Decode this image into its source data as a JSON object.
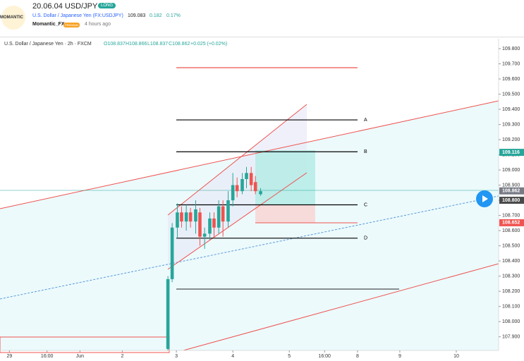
{
  "header": {
    "logo": "MOMANTIC",
    "title": "20.06.04 USD/JPY",
    "badge": "LONG",
    "symbol": "U.S. Dollar / Japanese Yen (FX:USDJPY)",
    "price": "109.083",
    "change": "0.182",
    "change_pct": "0.17%",
    "author": "Momantic_FX",
    "author_badge": "PREMIUM",
    "time": "4 hours ago"
  },
  "legend": {
    "name": "U.S. Dollar / Japanese Yen · 2h · FXCM",
    "open": "O108.837",
    "high": "H108.866",
    "low": "L108.837",
    "close": "C108.862",
    "change": "+0.025 (+0.02%)"
  },
  "chart_data": {
    "type": "candlestick",
    "x": [
      33.7,
      34.6,
      35.7,
      36.6,
      37.6,
      38.5,
      39.6,
      40.5,
      41.5,
      42.6,
      43.5,
      44.5,
      45.4,
      46.5,
      47.5,
      48.4,
      49.5,
      50.4,
      51.4,
      52.3,
      53.4
    ],
    "open": [
      107.82,
      108.28,
      108.62,
      108.72,
      108.66,
      108.72,
      108.66,
      108.72,
      108.56,
      108.58,
      108.68,
      108.62,
      108.76,
      108.66,
      108.8,
      108.9,
      108.86,
      108.94,
      108.98,
      108.92,
      108.84
    ],
    "high": [
      108.3,
      108.65,
      108.78,
      108.76,
      108.77,
      108.75,
      108.8,
      108.75,
      108.62,
      108.72,
      108.72,
      108.8,
      108.8,
      108.86,
      108.98,
      108.95,
      108.98,
      109.02,
      109.02,
      108.96,
      108.88
    ],
    "low": [
      107.81,
      108.26,
      108.55,
      108.62,
      108.6,
      108.62,
      108.58,
      108.5,
      108.48,
      108.54,
      108.55,
      108.58,
      108.56,
      108.62,
      108.76,
      108.82,
      108.84,
      108.88,
      108.86,
      108.84,
      108.83
    ],
    "close": [
      108.28,
      108.62,
      108.72,
      108.66,
      108.72,
      108.66,
      108.74,
      108.56,
      108.58,
      108.68,
      108.62,
      108.76,
      108.66,
      108.8,
      108.9,
      108.86,
      108.94,
      108.98,
      108.9,
      108.86,
      108.86
    ],
    "up_color": "#26a69a",
    "down_color": "#ef5350",
    "xlim": [
      -2,
      104
    ],
    "ylim": [
      107.81,
      109.865
    ],
    "xticks": [
      {
        "value": 0,
        "label": "29"
      },
      {
        "value": 8,
        "label": "16:00"
      },
      {
        "value": 15,
        "label": "Jun"
      },
      {
        "value": 24,
        "label": "2"
      },
      {
        "value": 35.5,
        "label": "3"
      },
      {
        "value": 47.5,
        "label": "4"
      },
      {
        "value": 59.5,
        "label": "5"
      },
      {
        "value": 67,
        "label": "16:00"
      },
      {
        "value": 74,
        "label": "8"
      },
      {
        "value": 83,
        "label": "9"
      },
      {
        "value": 95,
        "label": "10"
      }
    ],
    "yticks": [
      {
        "value": 107.9,
        "label": "107.900"
      },
      {
        "value": 108.0,
        "label": "108.000"
      },
      {
        "value": 108.1,
        "label": "108.100"
      },
      {
        "value": 108.2,
        "label": "108.200"
      },
      {
        "value": 108.3,
        "label": "108.300"
      },
      {
        "value": 108.4,
        "label": "108.400"
      },
      {
        "value": 108.5,
        "label": "108.500"
      },
      {
        "value": 108.6,
        "label": "108.600"
      },
      {
        "value": 108.7,
        "label": "108.700"
      },
      {
        "value": 108.8,
        "label": "108.800"
      },
      {
        "value": 108.9,
        "label": "108.900"
      },
      {
        "value": 109.0,
        "label": "109.000"
      },
      {
        "value": 109.1,
        "label": "109.100"
      },
      {
        "value": 109.2,
        "label": "109.200"
      },
      {
        "value": 109.3,
        "label": "109.300"
      },
      {
        "value": 109.4,
        "label": "109.400"
      },
      {
        "value": 109.5,
        "label": "109.500"
      },
      {
        "value": 109.6,
        "label": "109.600"
      },
      {
        "value": 109.7,
        "label": "109.700"
      },
      {
        "value": 109.8,
        "label": "109.800"
      }
    ],
    "levels": [
      {
        "label": "A",
        "value": 109.33,
        "color": "#000000"
      },
      {
        "label": "B",
        "value": 109.12,
        "color": "#000000"
      },
      {
        "label": "C",
        "value": 108.77,
        "color": "#000000"
      },
      {
        "label": "D",
        "value": 108.55,
        "color": "#000000"
      }
    ],
    "price_tags": [
      {
        "value": 109.116,
        "label": "109.116",
        "color": "#26a69a"
      },
      {
        "value": 108.862,
        "label": "108.862",
        "color": "#787b86"
      },
      {
        "value": 108.8,
        "label": "108.800",
        "color": "#4a4a4a"
      },
      {
        "value": 108.652,
        "label": "108.652",
        "color": "#ef5350"
      }
    ]
  }
}
